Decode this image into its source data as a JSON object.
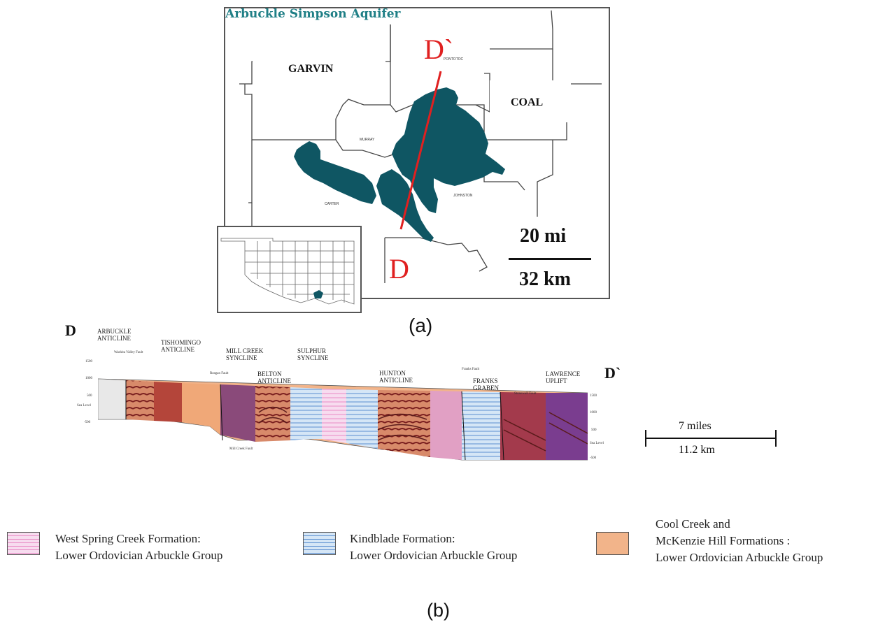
{
  "figure_a": {
    "title": "Arbuckle Simpson Aquifer",
    "caption": "(a)",
    "counties": {
      "garvin": "GARVIN",
      "coal": "COAL",
      "pontotoc": "PONTOTOC",
      "murray": "MURRAY",
      "carter": "CARTER",
      "johnston": "JOHNSTON"
    },
    "section_start": "D",
    "section_end": "D`",
    "scale": {
      "miles": "20 mi",
      "km": "32 km"
    },
    "colors": {
      "aquifer": "#0f5663",
      "section_line": "#e02020",
      "title": "#1f7f86"
    }
  },
  "figure_b": {
    "caption": "(b)",
    "start_label": "D",
    "end_label": "D`",
    "structures": [
      "ARBUCKLE ANTICLINE",
      "TISHOMINGO ANTICLINE",
      "MILL CREEK SYNCLINE",
      "BELTON ANTICLINE",
      "SULPHUR SYNCLINE",
      "HUNTON ANTICLINE",
      "FRANKS GRABEN",
      "LAWRENCE UPLIFT"
    ],
    "faults": [
      "Washita Valley Fault",
      "Reagan Fault",
      "Mill Creek Fault",
      "Franks Fault",
      "Stonewall Fault"
    ],
    "left_axis": [
      "1500",
      "1000",
      "500",
      "Sea Level",
      "-500"
    ],
    "right_axis": [
      "1500",
      "1000",
      "500",
      "Sea Level",
      "-500"
    ],
    "scale": {
      "miles": "7 miles",
      "km": "11.2 km"
    }
  },
  "legend": [
    {
      "line1": "West Spring Creek Formation:",
      "line2": "Lower Ordovician Arbuckle Group",
      "color": "#f7dcef",
      "stripe": "#e98ac5"
    },
    {
      "line1": "Kindblade Formation:",
      "line2": "Lower Ordovician Arbuckle Group",
      "color": "#d5e6f6",
      "stripe": "#5b8fd0"
    },
    {
      "line0": "Cool Creek and",
      "line1": "McKenzie Hill Formations :",
      "line2": "Lower Ordovician Arbuckle Group",
      "color": "#f2b48a"
    }
  ]
}
